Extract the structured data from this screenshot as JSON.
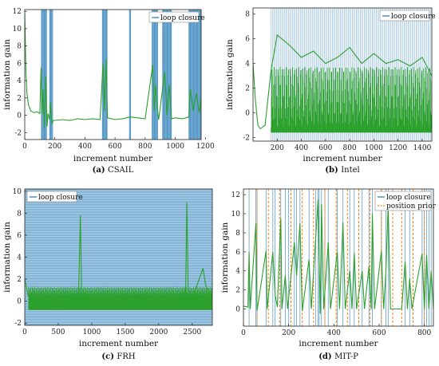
{
  "colors": {
    "gain": "#2ca02c",
    "loop_closure": "#1f77b4",
    "position_prior": "#ff7f0e",
    "axis": "#222222"
  },
  "chart_data": [
    {
      "id": "a",
      "type": "line",
      "caption_letter": "(a)",
      "caption_text": "CSAIL",
      "xlabel": "increment number",
      "ylabel": "information gain",
      "xlim": [
        0,
        1172
      ],
      "ylim": [
        -2.8,
        12.2
      ],
      "xticks": [
        0,
        200,
        400,
        600,
        800,
        1000,
        1200
      ],
      "yticks": [
        -2,
        0,
        2,
        4,
        6,
        8,
        10,
        12
      ],
      "legend": [
        "loop closure"
      ],
      "legend_position": "top-right",
      "loop_closure_ranges": [
        [
          110,
          148
        ],
        [
          165,
          186
        ],
        [
          515,
          548
        ],
        [
          695,
          705
        ],
        [
          845,
          885
        ],
        [
          915,
          975
        ],
        [
          1090,
          1172
        ]
      ],
      "series": [
        {
          "name": "loop closure",
          "values": [
            [
              0,
              11.8
            ],
            [
              8,
              5.0
            ],
            [
              15,
              2.5
            ],
            [
              25,
              1.2
            ],
            [
              40,
              0.5
            ],
            [
              60,
              0.3
            ],
            [
              85,
              0.4
            ],
            [
              100,
              0.2
            ],
            [
              108,
              5.5
            ],
            [
              115,
              0.2
            ],
            [
              122,
              3.0
            ],
            [
              130,
              -1.5
            ],
            [
              140,
              4.5
            ],
            [
              148,
              -1.3
            ],
            [
              155,
              0.2
            ],
            [
              165,
              -0.5
            ],
            [
              172,
              1.5
            ],
            [
              180,
              -1.0
            ],
            [
              190,
              -0.6
            ],
            [
              250,
              -0.5
            ],
            [
              300,
              -0.6
            ],
            [
              350,
              -0.4
            ],
            [
              400,
              -0.5
            ],
            [
              450,
              -0.4
            ],
            [
              500,
              -0.5
            ],
            [
              520,
              6.0
            ],
            [
              530,
              0.5
            ],
            [
              540,
              6.5
            ],
            [
              550,
              -0.3
            ],
            [
              600,
              -0.5
            ],
            [
              650,
              -0.4
            ],
            [
              700,
              -0.2
            ],
            [
              750,
              -0.3
            ],
            [
              800,
              -0.4
            ],
            [
              850,
              5.8
            ],
            [
              860,
              0.5
            ],
            [
              870,
              3.5
            ],
            [
              880,
              1.0
            ],
            [
              890,
              -0.5
            ],
            [
              930,
              5.0
            ],
            [
              945,
              0.0
            ],
            [
              960,
              3.5
            ],
            [
              975,
              -0.4
            ],
            [
              1000,
              -0.3
            ],
            [
              1050,
              -0.4
            ],
            [
              1090,
              -0.2
            ],
            [
              1100,
              3.0
            ],
            [
              1120,
              0.5
            ],
            [
              1140,
              2.5
            ],
            [
              1160,
              0.3
            ],
            [
              1172,
              2.0
            ]
          ]
        }
      ]
    },
    {
      "id": "b",
      "type": "line",
      "caption_letter": "(b)",
      "caption_text": "Intel",
      "xlabel": "increment number",
      "ylabel": "information gain",
      "xlim": [
        0,
        1480
      ],
      "ylim": [
        -2.3,
        8.5
      ],
      "xticks": [
        200,
        400,
        600,
        800,
        1000,
        1200,
        1400
      ],
      "yticks": [
        -2,
        0,
        2,
        4,
        6,
        8
      ],
      "legend": [
        "loop closure"
      ],
      "legend_position": "top-right",
      "loop_closure_density": "dense from 150 to 1480",
      "series": [
        {
          "name": "loop closure",
          "values": [
            [
              0,
              4.0
            ],
            [
              20,
              1.0
            ],
            [
              40,
              -1.0
            ],
            [
              60,
              -1.3
            ],
            [
              100,
              -1.0
            ],
            [
              150,
              3.5
            ],
            [
              200,
              6.3
            ],
            [
              300,
              5.5
            ],
            [
              400,
              4.5
            ],
            [
              500,
              5.0
            ],
            [
              600,
              4.0
            ],
            [
              700,
              4.5
            ],
            [
              800,
              5.3
            ],
            [
              900,
              4.0
            ],
            [
              1000,
              4.8
            ],
            [
              1100,
              4.0
            ],
            [
              1200,
              4.3
            ],
            [
              1300,
              3.8
            ],
            [
              1400,
              4.5
            ],
            [
              1480,
              3.0
            ]
          ]
        }
      ]
    },
    {
      "id": "c",
      "type": "line",
      "caption_letter": "(c)",
      "caption_text": "FRH",
      "xlabel": "increment number",
      "ylabel": "information gain",
      "xlim": [
        0,
        2800
      ],
      "ylim": [
        -2.2,
        10.2
      ],
      "xticks": [
        0,
        500,
        1000,
        1500,
        2000,
        2500
      ],
      "yticks": [
        -2,
        0,
        2,
        4,
        6,
        8,
        10
      ],
      "legend": [
        "loop closure"
      ],
      "legend_position": "top-left",
      "series": [
        {
          "name": "loop closure",
          "values": [
            [
              0,
              2.0
            ],
            [
              50,
              0.5
            ],
            [
              100,
              0.0
            ],
            [
              200,
              -0.3
            ],
            [
              400,
              -0.5
            ],
            [
              800,
              -0.5
            ],
            [
              830,
              7.8
            ],
            [
              850,
              0.8
            ],
            [
              900,
              0.2
            ],
            [
              1500,
              0.0
            ],
            [
              2000,
              0.0
            ],
            [
              2400,
              0.0
            ],
            [
              2420,
              9.0
            ],
            [
              2440,
              0.5
            ],
            [
              2500,
              0.2
            ],
            [
              2660,
              3.0
            ],
            [
              2700,
              1.5
            ],
            [
              2760,
              0.5
            ],
            [
              2800,
              0.3
            ]
          ]
        }
      ]
    },
    {
      "id": "d",
      "type": "line",
      "caption_letter": "(d)",
      "caption_text": "MIT-P",
      "xlabel": "increment number",
      "ylabel": "information gain",
      "xlim": [
        0,
        840
      ],
      "ylim": [
        -1.8,
        12.6
      ],
      "xticks": [
        0,
        200,
        400,
        600,
        800
      ],
      "yticks": [
        0,
        2,
        4,
        6,
        8,
        10,
        12
      ],
      "legend": [
        "loop closure",
        "position prior"
      ],
      "legend_position": "top-right",
      "loop_closure_x": [
        25,
        55,
        60,
        100,
        130,
        140,
        165,
        185,
        200,
        225,
        235,
        250,
        290,
        320,
        330,
        335,
        345,
        360,
        375,
        415,
        440,
        470,
        490,
        525,
        555,
        570,
        610,
        630,
        640,
        715,
        735,
        790,
        800,
        810,
        820,
        830
      ],
      "position_prior_x": [
        60,
        110,
        160,
        210,
        260,
        310,
        360,
        410,
        460,
        510,
        560,
        610,
        660,
        700,
        750,
        800
      ],
      "series": [
        {
          "name": "loop closure",
          "values": [
            [
              0,
              0.3
            ],
            [
              20,
              0.2
            ],
            [
              25,
              6.0
            ],
            [
              30,
              0.0
            ],
            [
              55,
              9.0
            ],
            [
              60,
              -0.2
            ],
            [
              100,
              6.1
            ],
            [
              105,
              0.0
            ],
            [
              130,
              6.0
            ],
            [
              140,
              1.5
            ],
            [
              150,
              0.2
            ],
            [
              165,
              9.5
            ],
            [
              170,
              0.0
            ],
            [
              185,
              3.5
            ],
            [
              195,
              0.0
            ],
            [
              225,
              7.0
            ],
            [
              235,
              3.5
            ],
            [
              250,
              9.0
            ],
            [
              260,
              -0.2
            ],
            [
              290,
              5.2
            ],
            [
              300,
              0.0
            ],
            [
              330,
              11.5
            ],
            [
              340,
              -0.5
            ],
            [
              345,
              11.0
            ],
            [
              355,
              0.0
            ],
            [
              375,
              7.0
            ],
            [
              385,
              0.0
            ],
            [
              415,
              6.0
            ],
            [
              425,
              0.0
            ],
            [
              440,
              9.1
            ],
            [
              450,
              0.0
            ],
            [
              470,
              4.0
            ],
            [
              480,
              0.0
            ],
            [
              490,
              5.9
            ],
            [
              500,
              0.0
            ],
            [
              525,
              4.0
            ],
            [
              535,
              0.0
            ],
            [
              555,
              4.5
            ],
            [
              565,
              0.0
            ],
            [
              570,
              10.0
            ],
            [
              580,
              0.0
            ],
            [
              610,
              6.1
            ],
            [
              620,
              0.0
            ],
            [
              630,
              4.0
            ],
            [
              640,
              10.9
            ],
            [
              650,
              0.0
            ],
            [
              700,
              0.0
            ],
            [
              715,
              5.0
            ],
            [
              725,
              0.0
            ],
            [
              735,
              3.2
            ],
            [
              745,
              0.0
            ],
            [
              790,
              5.8
            ],
            [
              800,
              0.0
            ],
            [
              810,
              5.7
            ],
            [
              820,
              0.0
            ],
            [
              830,
              4.0
            ],
            [
              840,
              0.0
            ]
          ]
        }
      ]
    }
  ]
}
